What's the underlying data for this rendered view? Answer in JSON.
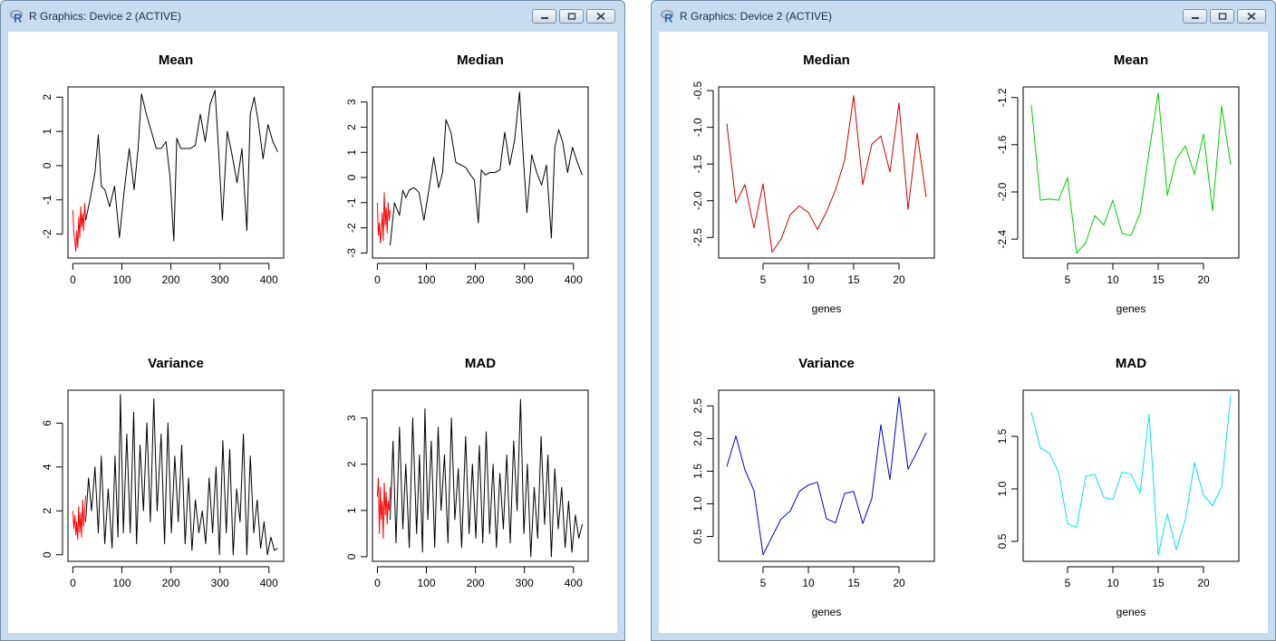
{
  "windows": [
    {
      "title": "R Graphics: Device 2 (ACTIVE)"
    },
    {
      "title": "R Graphics: Device 2 (ACTIVE)"
    }
  ],
  "chart_data": [
    {
      "type": "line",
      "title": "Mean",
      "xlabel": "",
      "ylabel": "",
      "xlim": [
        -10,
        430
      ],
      "ylim": [
        -2.7,
        2.3
      ],
      "xticks": [
        0,
        100,
        200,
        300,
        400
      ],
      "yticks": [
        -2,
        -1,
        0,
        1,
        2
      ],
      "series": [
        {
          "color": "#ff0000",
          "x": [
            0,
            2,
            4,
            6,
            8,
            10,
            12,
            14,
            16,
            18,
            20,
            22,
            24,
            26
          ],
          "y": [
            -1.3,
            -2.0,
            -2.2,
            -2.5,
            -1.9,
            -2.4,
            -1.5,
            -2.1,
            -1.2,
            -1.8,
            -1.4,
            -1.9,
            -1.1,
            -1.6
          ]
        },
        {
          "color": "#000000",
          "x": [
            26,
            35,
            45,
            52,
            58,
            65,
            75,
            85,
            95,
            105,
            115,
            125,
            133,
            140,
            150,
            160,
            170,
            180,
            190,
            198,
            206,
            212,
            220,
            230,
            240,
            250,
            260,
            270,
            280,
            290,
            297,
            305,
            315,
            325,
            335,
            345,
            355,
            362,
            370,
            378,
            388,
            398,
            408,
            418
          ],
          "y": [
            -1.6,
            -1.0,
            -0.2,
            0.9,
            -0.6,
            -0.7,
            -1.2,
            -0.6,
            -2.1,
            -0.7,
            0.5,
            -0.7,
            0.5,
            2.1,
            1.5,
            1.0,
            0.5,
            0.5,
            0.7,
            -0.3,
            -2.2,
            0.8,
            0.5,
            0.5,
            0.5,
            0.6,
            1.5,
            0.7,
            1.8,
            2.2,
            0.5,
            -1.6,
            1.0,
            0.3,
            -0.5,
            0.5,
            -1.9,
            1.5,
            2.0,
            1.3,
            0.2,
            1.2,
            0.7,
            0.4
          ]
        }
      ]
    },
    {
      "type": "line",
      "title": "Median",
      "xlabel": "",
      "ylabel": "",
      "xlim": [
        -10,
        430
      ],
      "ylim": [
        -3.2,
        3.6
      ],
      "xticks": [
        0,
        100,
        200,
        300,
        400
      ],
      "yticks": [
        -3,
        -2,
        -1,
        0,
        1,
        2,
        3
      ],
      "series": [
        {
          "color": "#ff0000",
          "x": [
            0,
            2,
            4,
            6,
            8,
            10,
            12,
            14,
            16,
            18,
            20,
            22,
            24,
            26
          ],
          "y": [
            -1.0,
            -2.3,
            -1.8,
            -2.6,
            -2.1,
            -1.4,
            -2.5,
            -0.6,
            -1.9,
            -1.2,
            -2.2,
            -1.0,
            -1.7,
            -1.3
          ]
        },
        {
          "color": "#000000",
          "x": [
            26,
            35,
            45,
            52,
            58,
            65,
            75,
            85,
            95,
            105,
            115,
            125,
            133,
            140,
            150,
            160,
            170,
            180,
            190,
            198,
            206,
            212,
            220,
            230,
            240,
            250,
            260,
            270,
            280,
            290,
            297,
            305,
            315,
            325,
            335,
            345,
            355,
            362,
            370,
            378,
            388,
            398,
            408,
            418
          ],
          "y": [
            -2.7,
            -1.0,
            -1.5,
            -0.5,
            -0.8,
            -0.5,
            -0.4,
            -0.6,
            -1.7,
            -0.5,
            0.8,
            -0.4,
            0.2,
            2.3,
            1.8,
            0.6,
            0.5,
            0.4,
            0.1,
            -0.1,
            -1.8,
            0.3,
            0.1,
            0.2,
            0.2,
            0.3,
            1.8,
            0.5,
            1.5,
            3.4,
            1.0,
            -1.4,
            0.9,
            0.2,
            -0.3,
            0.5,
            -2.4,
            1.2,
            1.9,
            1.4,
            0.2,
            1.2,
            0.6,
            0.1
          ]
        }
      ]
    },
    {
      "type": "line",
      "title": "Variance",
      "xlabel": "",
      "ylabel": "",
      "xlim": [
        -10,
        430
      ],
      "ylim": [
        -0.3,
        7.5
      ],
      "xticks": [
        0,
        100,
        200,
        300,
        400
      ],
      "yticks": [
        0,
        2,
        4,
        6
      ],
      "series": [
        {
          "color": "#ff0000",
          "x": [
            0,
            2,
            4,
            6,
            8,
            10,
            12,
            14,
            16,
            18,
            20,
            22,
            24,
            26
          ],
          "y": [
            2.0,
            1.2,
            1.8,
            0.9,
            1.5,
            0.7,
            2.2,
            1.0,
            1.9,
            0.8,
            2.5,
            1.3,
            2.0,
            2.7
          ]
        },
        {
          "color": "#000000",
          "x": [
            26,
            32,
            38,
            45,
            52,
            58,
            65,
            72,
            80,
            86,
            92,
            97,
            103,
            110,
            117,
            124,
            130,
            137,
            144,
            151,
            158,
            165,
            172,
            180,
            187,
            194,
            201,
            208,
            215,
            222,
            229,
            236,
            243,
            250,
            257,
            264,
            271,
            278,
            285,
            292,
            299,
            306,
            313,
            320,
            327,
            334,
            341,
            348,
            355,
            362,
            369,
            376,
            383,
            390,
            397,
            404,
            411,
            418
          ],
          "y": [
            1.5,
            3.5,
            2.0,
            4.0,
            1.0,
            4.5,
            0.5,
            3.0,
            0.3,
            4.5,
            0.8,
            7.3,
            1.0,
            5.5,
            1.0,
            6.5,
            0.5,
            5.0,
            2.0,
            6.0,
            1.5,
            7.1,
            2.0,
            5.5,
            0.5,
            6.0,
            1.0,
            4.5,
            1.5,
            5.0,
            0.5,
            3.5,
            0.2,
            2.5,
            1.0,
            2.0,
            0.5,
            3.5,
            1.0,
            4.0,
            0.0,
            5.2,
            1.0,
            4.8,
            0.0,
            3.0,
            1.5,
            5.5,
            0.0,
            4.5,
            1.0,
            2.5,
            0.3,
            1.5,
            0.0,
            0.8,
            0.2,
            0.3
          ]
        }
      ]
    },
    {
      "type": "line",
      "title": "MAD",
      "xlabel": "",
      "ylabel": "",
      "xlim": [
        -10,
        430
      ],
      "ylim": [
        -0.1,
        3.6
      ],
      "xticks": [
        0,
        100,
        200,
        300,
        400
      ],
      "yticks": [
        0.0,
        1.0,
        2.0,
        3.0
      ],
      "series": [
        {
          "color": "#ff0000",
          "x": [
            0,
            2,
            4,
            6,
            8,
            10,
            12,
            14,
            16,
            18,
            20,
            22,
            24,
            26
          ],
          "y": [
            1.3,
            1.7,
            0.5,
            1.5,
            0.8,
            1.2,
            0.4,
            1.6,
            0.9,
            1.4,
            0.7,
            1.2,
            1.0,
            1.5
          ]
        },
        {
          "color": "#000000",
          "x": [
            26,
            32,
            38,
            45,
            52,
            58,
            65,
            72,
            80,
            86,
            92,
            97,
            103,
            110,
            117,
            124,
            130,
            137,
            144,
            151,
            158,
            165,
            172,
            180,
            187,
            194,
            201,
            208,
            215,
            222,
            229,
            236,
            243,
            250,
            257,
            264,
            271,
            278,
            285,
            292,
            299,
            306,
            313,
            320,
            327,
            334,
            341,
            348,
            355,
            362,
            369,
            376,
            383,
            390,
            397,
            404,
            411,
            418
          ],
          "y": [
            0.8,
            2.5,
            0.3,
            2.8,
            0.6,
            2.0,
            0.2,
            3.0,
            0.5,
            2.2,
            0.1,
            3.2,
            0.8,
            2.5,
            0.2,
            2.8,
            1.0,
            2.2,
            0.3,
            3.0,
            0.8,
            1.9,
            0.2,
            2.6,
            0.5,
            2.0,
            0.4,
            2.4,
            0.3,
            2.7,
            0.5,
            2.0,
            0.2,
            1.8,
            0.6,
            2.2,
            0.3,
            2.5,
            1.0,
            3.4,
            0.5,
            2.0,
            0.0,
            1.5,
            0.4,
            2.6,
            0.7,
            2.2,
            0.0,
            1.9,
            0.6,
            1.5,
            0.2,
            1.2,
            0.1,
            0.9,
            0.4,
            0.7
          ]
        }
      ]
    },
    {
      "type": "line",
      "title": "Median",
      "xlabel": "genes",
      "ylabel": "",
      "xlim": [
        0.1,
        23.9
      ],
      "ylim": [
        -2.78,
        -0.45
      ],
      "xticks": [
        5,
        10,
        15,
        20
      ],
      "yticks": [
        -2.5,
        -2.0,
        -1.5,
        -1.0,
        -0.5
      ],
      "series": [
        {
          "color": "#cd0000",
          "x": [
            1,
            2,
            3,
            4,
            5,
            6,
            7,
            8,
            9,
            10,
            11,
            12,
            13,
            14,
            15,
            16,
            17,
            18,
            19,
            20,
            21,
            22,
            23
          ],
          "y": [
            -0.95,
            -2.03,
            -1.78,
            -2.37,
            -1.77,
            -2.7,
            -2.52,
            -2.19,
            -2.07,
            -2.16,
            -2.39,
            -2.15,
            -1.85,
            -1.45,
            -0.57,
            -1.78,
            -1.23,
            -1.12,
            -1.61,
            -0.67,
            -2.12,
            -1.08,
            -1.95
          ]
        }
      ]
    },
    {
      "type": "line",
      "title": "Mean",
      "xlabel": "genes",
      "ylabel": "",
      "xlim": [
        0.1,
        23.9
      ],
      "ylim": [
        -2.56,
        -1.11
      ],
      "xticks": [
        5,
        10,
        15,
        20
      ],
      "yticks": [
        -2.4,
        -2.0,
        -1.6,
        -1.2
      ],
      "series": [
        {
          "color": "#00cd00",
          "x": [
            1,
            2,
            3,
            4,
            5,
            6,
            7,
            8,
            9,
            10,
            11,
            12,
            13,
            14,
            15,
            16,
            17,
            18,
            19,
            20,
            21,
            22,
            23
          ],
          "y": [
            -1.26,
            -2.07,
            -2.06,
            -2.07,
            -1.88,
            -2.52,
            -2.43,
            -2.2,
            -2.28,
            -2.07,
            -2.35,
            -2.37,
            -2.18,
            -1.66,
            -1.16,
            -2.03,
            -1.72,
            -1.61,
            -1.85,
            -1.51,
            -2.16,
            -1.27,
            -1.77
          ]
        }
      ]
    },
    {
      "type": "line",
      "title": "Variance",
      "xlabel": "genes",
      "ylabel": "",
      "xlim": [
        0.1,
        23.9
      ],
      "ylim": [
        0.12,
        2.74
      ],
      "xticks": [
        5,
        10,
        15,
        20
      ],
      "yticks": [
        0.5,
        1.0,
        1.5,
        2.0,
        2.5
      ],
      "series": [
        {
          "color": "#0000cd",
          "x": [
            1,
            2,
            3,
            4,
            5,
            6,
            7,
            8,
            9,
            10,
            11,
            12,
            13,
            14,
            15,
            16,
            17,
            18,
            19,
            20,
            21,
            22,
            23
          ],
          "y": [
            1.57,
            2.04,
            1.52,
            1.2,
            0.22,
            0.5,
            0.77,
            0.89,
            1.19,
            1.29,
            1.33,
            0.77,
            0.71,
            1.16,
            1.19,
            0.7,
            1.08,
            2.21,
            1.37,
            2.64,
            1.53,
            1.8,
            2.09
          ]
        }
      ]
    },
    {
      "type": "line",
      "title": "MAD",
      "xlabel": "genes",
      "ylabel": "",
      "xlim": [
        0.1,
        23.9
      ],
      "ylim": [
        0.31,
        1.94
      ],
      "xticks": [
        5,
        10,
        15,
        20
      ],
      "yticks": [
        0.5,
        1.0,
        1.5
      ],
      "series": [
        {
          "color": "#00e5ee",
          "x": [
            1,
            2,
            3,
            4,
            5,
            6,
            7,
            8,
            9,
            10,
            11,
            12,
            13,
            14,
            15,
            16,
            17,
            18,
            19,
            20,
            21,
            22,
            23
          ],
          "y": [
            1.73,
            1.39,
            1.34,
            1.16,
            0.67,
            0.63,
            1.12,
            1.14,
            0.92,
            0.9,
            1.16,
            1.14,
            0.96,
            1.71,
            0.37,
            0.76,
            0.42,
            0.71,
            1.25,
            0.94,
            0.84,
            1.02,
            1.89
          ]
        }
      ]
    }
  ]
}
